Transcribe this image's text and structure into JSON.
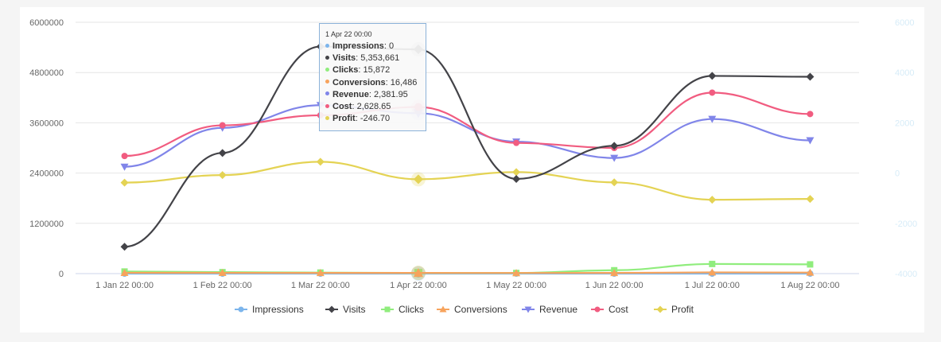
{
  "chart_data": {
    "type": "line",
    "x": [
      "1 Jan 22 00:00",
      "1 Feb 22 00:00",
      "1 Mar 22 00:00",
      "1 Apr 22 00:00",
      "1 May 22 00:00",
      "1 Jun 22 00:00",
      "1 Jul 22 00:00",
      "1 Aug 22 00:00"
    ],
    "y_left": {
      "ticks": [
        "0",
        "1200000",
        "2400000",
        "3600000",
        "4800000",
        "6000000"
      ],
      "lim": [
        0,
        6000000
      ]
    },
    "y_right": {
      "ticks": [
        "-4000",
        "-2000",
        "0",
        "2000",
        "4000",
        "6000"
      ],
      "lim": [
        -4000,
        6000
      ]
    },
    "grid": true,
    "legend_position": "bottom",
    "series": [
      {
        "name": "Impressions",
        "axis": "left",
        "color": "#7cb5ec",
        "marker": "circle",
        "values": [
          0,
          0,
          0,
          0,
          0,
          0,
          0,
          0
        ]
      },
      {
        "name": "Visits",
        "axis": "left",
        "color": "#434348",
        "marker": "diamond",
        "values": [
          640000,
          2880000,
          5420000,
          5353661,
          2260000,
          3050000,
          4720000,
          4700000
        ]
      },
      {
        "name": "Clicks",
        "axis": "left",
        "color": "#90ed7d",
        "marker": "square",
        "values": [
          50000,
          35000,
          25000,
          15872,
          15000,
          80000,
          230000,
          220000
        ]
      },
      {
        "name": "Conversions",
        "axis": "left",
        "color": "#f7a35c",
        "marker": "triangle",
        "values": [
          20000,
          18000,
          17000,
          16486,
          15000,
          16000,
          30000,
          25000
        ]
      },
      {
        "name": "Revenue",
        "axis": "right",
        "color": "#8085e9",
        "marker": "triangle-down",
        "values": [
          250,
          1800,
          2700,
          2381.95,
          1250,
          600,
          2150,
          1300
        ]
      },
      {
        "name": "Cost",
        "axis": "right",
        "color": "#f15c80",
        "marker": "circle",
        "values": [
          680,
          1900,
          2300,
          2628.65,
          1200,
          1000,
          3200,
          2350
        ]
      },
      {
        "name": "Profit",
        "axis": "right",
        "color": "#e4d354",
        "marker": "diamond",
        "values": [
          -380,
          -80,
          450,
          -246.7,
          40,
          -370,
          -1060,
          -1030
        ]
      }
    ]
  },
  "tooltip": {
    "title": "1 Apr 22 00:00",
    "rows": [
      {
        "name": "Impressions",
        "value": "0",
        "color": "#7cb5ec"
      },
      {
        "name": "Visits",
        "value": "5,353,661",
        "color": "#434348"
      },
      {
        "name": "Clicks",
        "value": "15,872",
        "color": "#90ed7d"
      },
      {
        "name": "Conversions",
        "value": "16,486",
        "color": "#f7a35c"
      },
      {
        "name": "Revenue",
        "value": "2,381.95",
        "color": "#8085e9"
      },
      {
        "name": "Cost",
        "value": "2,628.65",
        "color": "#f15c80"
      },
      {
        "name": "Profit",
        "value": "-246.70",
        "color": "#e4d354"
      }
    ]
  }
}
